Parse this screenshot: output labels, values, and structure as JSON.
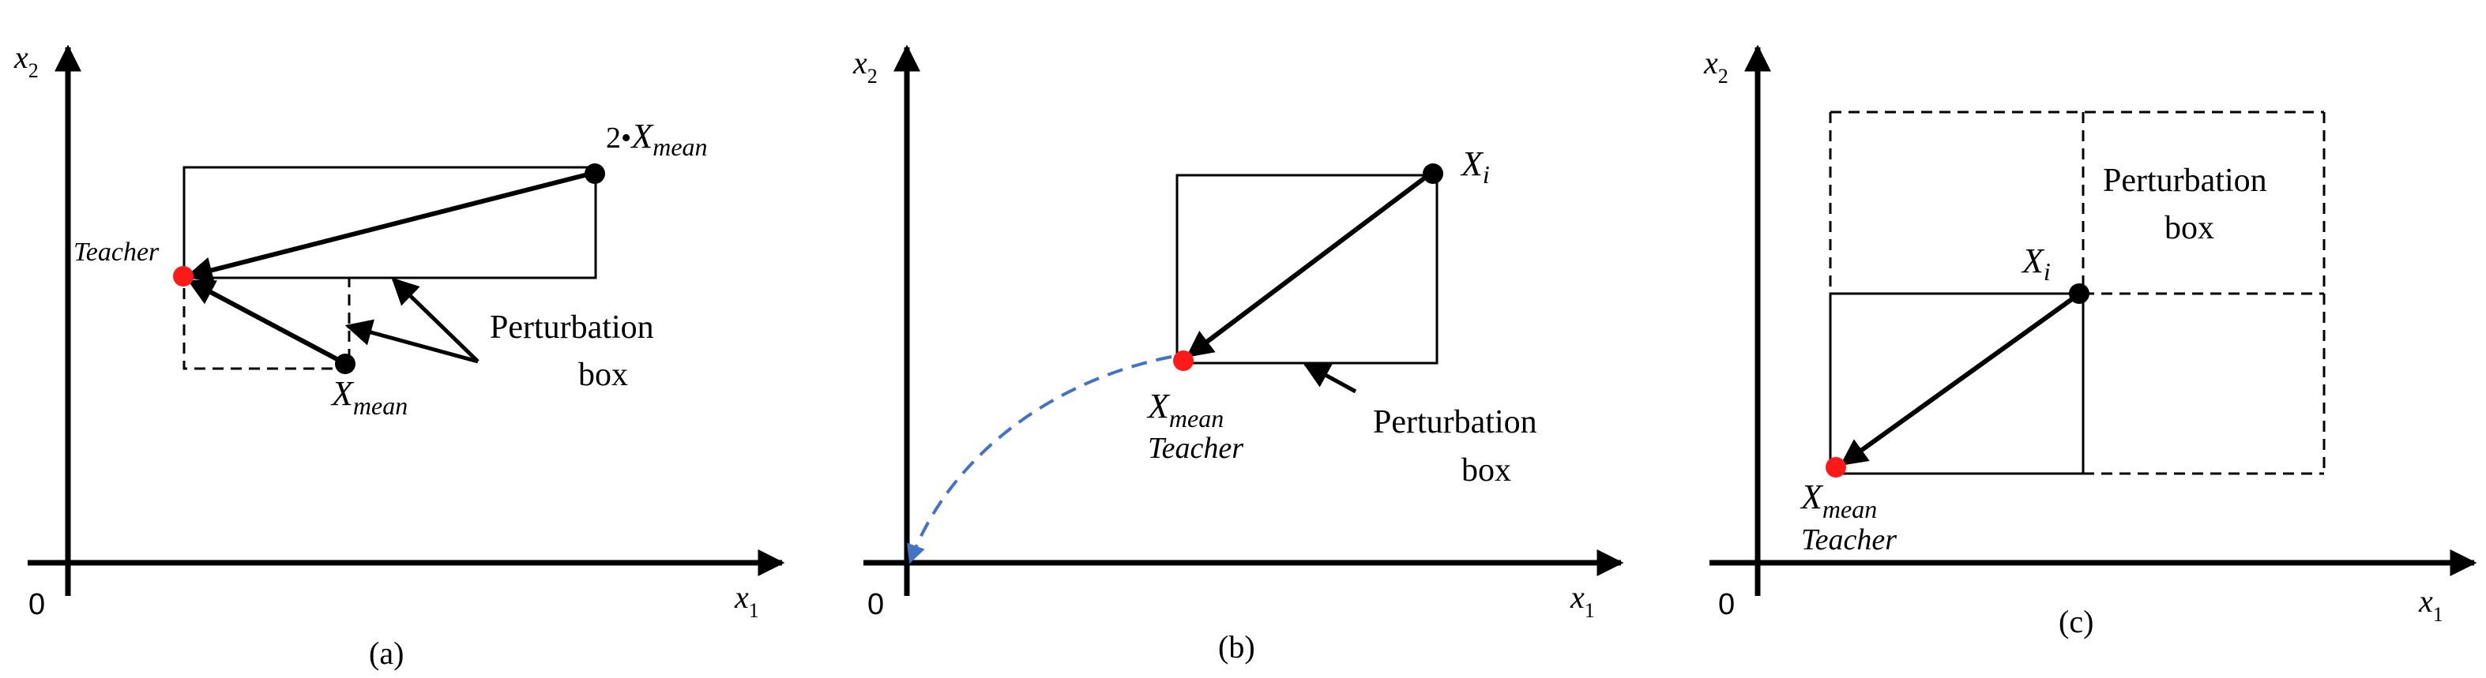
{
  "panels": {
    "a": {
      "caption": "(a)",
      "origin_label": "0",
      "x_axis": {
        "base": "x",
        "sub": "1"
      },
      "y_axis": {
        "base": "x",
        "sub": "2"
      },
      "two_x_mean": {
        "prefix": "2•",
        "base": "X",
        "sub": "mean"
      },
      "teacher_label": "Teacher",
      "x_mean": {
        "base": "X",
        "sub": "mean"
      },
      "perturbation_lines": [
        "Perturbation",
        "box"
      ]
    },
    "b": {
      "caption": "(b)",
      "origin_label": "0",
      "x_axis": {
        "base": "x",
        "sub": "1"
      },
      "y_axis": {
        "base": "x",
        "sub": "2"
      },
      "x_i": {
        "base": "X",
        "sub": "i"
      },
      "x_mean": {
        "base": "X",
        "sub": "mean"
      },
      "teacher_label": "Teacher",
      "perturbation_lines": [
        "Perturbation",
        "box"
      ]
    },
    "c": {
      "caption": "(c)",
      "origin_label": "0",
      "x_axis": {
        "base": "x",
        "sub": "1"
      },
      "y_axis": {
        "base": "x",
        "sub": "2"
      },
      "x_i": {
        "base": "X",
        "sub": "i"
      },
      "x_mean": {
        "base": "X",
        "sub": "mean"
      },
      "teacher_label": "Teacher",
      "perturbation_lines": [
        "Perturbation",
        "box"
      ]
    }
  },
  "colors": {
    "ink": "#000000",
    "teacher_point": "#ff1a1a",
    "path_blue": "#4472c4"
  }
}
